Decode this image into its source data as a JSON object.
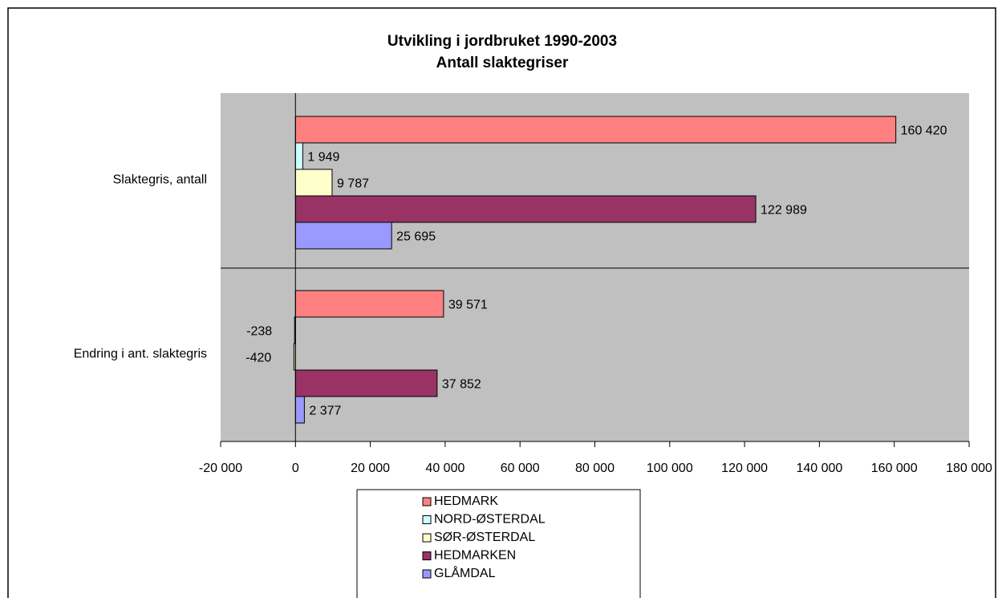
{
  "chart_data": {
    "type": "bar",
    "title": "Utvikling i jordbruket 1990-2003",
    "subtitle": "Antall slaktegriser",
    "categories": [
      "Slaktegris, antall",
      "Endring i ant. slaktegris"
    ],
    "series": [
      {
        "name": "HEDMARK",
        "color": "#ff8080",
        "values": [
          160420,
          39571
        ],
        "value_labels": [
          "160 420",
          "39 571"
        ]
      },
      {
        "name": "NORD-ØSTERDAL",
        "color": "#ccffff",
        "values": [
          1949,
          -238
        ],
        "value_labels": [
          "1 949",
          "-238"
        ]
      },
      {
        "name": "SØR-ØSTERDAL",
        "color": "#ffffcc",
        "values": [
          9787,
          -420
        ],
        "value_labels": [
          "9 787",
          "-420"
        ]
      },
      {
        "name": "HEDMARKEN",
        "color": "#993366",
        "values": [
          122989,
          37852
        ],
        "value_labels": [
          "122 989",
          "37 852"
        ]
      },
      {
        "name": "GLÅMDAL",
        "color": "#9999ff",
        "values": [
          25695,
          2377
        ],
        "value_labels": [
          "25 695",
          "2 377"
        ]
      }
    ],
    "xlim": [
      -20000,
      180000
    ],
    "xticks": [
      {
        "value": -20000,
        "label": "-20 000"
      },
      0,
      {
        "value": 20000,
        "label": "20 000"
      },
      {
        "value": 40000,
        "label": "40 000"
      },
      {
        "value": 60000,
        "label": "60 000"
      },
      {
        "value": 80000,
        "label": "80 000"
      },
      {
        "value": 100000,
        "label": "100 000"
      },
      {
        "value": 120000,
        "label": "120 000"
      },
      {
        "value": 140000,
        "label": "140 000"
      },
      {
        "value": 160000,
        "label": "160 000"
      },
      {
        "value": 180000,
        "label": "180 000"
      }
    ]
  }
}
